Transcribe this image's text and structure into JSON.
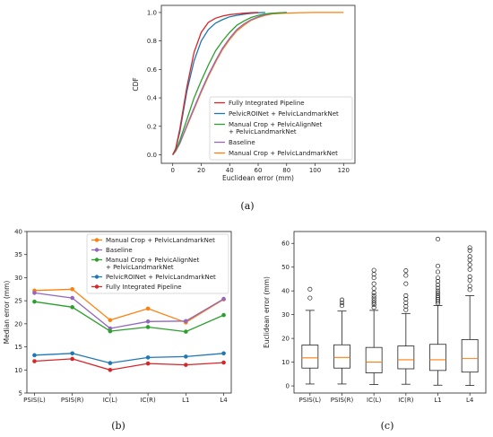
{
  "colors": {
    "fully_integrated": "#d62728",
    "pelvicroi": "#1f77b4",
    "manual_align": "#2ca02c",
    "baseline": "#9467bd",
    "manual_landmark": "#ff7f0e",
    "median_line": "#ff7f0e"
  },
  "chart_data": [
    {
      "type": "line",
      "panel_label": "(a)",
      "xlabel": "Euclidean error (mm)",
      "ylabel": "CDF",
      "xlim": [
        -8,
        128
      ],
      "ylim": [
        -0.06,
        1.05
      ],
      "xticks": [
        0,
        20,
        40,
        60,
        80,
        100,
        120
      ],
      "yticks": [
        0.0,
        0.2,
        0.4,
        0.6,
        0.8,
        1.0
      ],
      "legend_position": "lower-right",
      "series": [
        {
          "name": "Fully Integrated Pipeline",
          "color": "#d62728",
          "x": [
            0,
            2,
            5,
            10,
            15,
            20,
            25,
            30,
            35,
            40,
            45,
            50,
            55,
            60
          ],
          "y": [
            0.0,
            0.04,
            0.18,
            0.48,
            0.72,
            0.86,
            0.93,
            0.96,
            0.975,
            0.985,
            0.99,
            0.995,
            0.998,
            1.0
          ]
        },
        {
          "name": "PelvicROINet + PelvicLandmarkNet",
          "color": "#1f77b4",
          "x": [
            0,
            2,
            5,
            10,
            15,
            20,
            25,
            30,
            35,
            40,
            45,
            50,
            55,
            60,
            65
          ],
          "y": [
            0.0,
            0.04,
            0.16,
            0.45,
            0.66,
            0.8,
            0.88,
            0.925,
            0.95,
            0.97,
            0.98,
            0.988,
            0.994,
            0.998,
            1.0
          ]
        },
        {
          "name": "Manual Crop + PelvicAlignNet + PelvicLandmarkNet",
          "color": "#2ca02c",
          "x": [
            0,
            2,
            5,
            10,
            15,
            20,
            25,
            30,
            35,
            40,
            45,
            50,
            55,
            60,
            65,
            70,
            80
          ],
          "y": [
            0.0,
            0.03,
            0.1,
            0.25,
            0.4,
            0.52,
            0.63,
            0.73,
            0.8,
            0.86,
            0.91,
            0.94,
            0.965,
            0.98,
            0.99,
            0.995,
            1.0
          ]
        },
        {
          "name": "Baseline",
          "color": "#9467bd",
          "x": [
            0,
            2,
            5,
            10,
            15,
            20,
            25,
            30,
            35,
            40,
            45,
            50,
            55,
            60,
            65,
            70,
            75,
            80
          ],
          "y": [
            0.0,
            0.025,
            0.08,
            0.21,
            0.33,
            0.45,
            0.56,
            0.66,
            0.75,
            0.82,
            0.88,
            0.92,
            0.95,
            0.97,
            0.985,
            0.993,
            0.997,
            1.0
          ]
        },
        {
          "name": "Manual Crop + PelvicLandmarkNet",
          "color": "#ff7f0e",
          "x": [
            0,
            2,
            5,
            10,
            15,
            20,
            25,
            30,
            35,
            40,
            45,
            50,
            55,
            60,
            65,
            70,
            80,
            90,
            100,
            120
          ],
          "y": [
            0.0,
            0.025,
            0.08,
            0.2,
            0.32,
            0.44,
            0.55,
            0.65,
            0.74,
            0.81,
            0.87,
            0.91,
            0.945,
            0.965,
            0.98,
            0.99,
            0.996,
            0.999,
            1.0,
            1.0
          ]
        }
      ]
    },
    {
      "type": "line",
      "panel_label": "(b)",
      "xlabel": "",
      "ylabel": "Median error (mm)",
      "categories": [
        "PSIS(L)",
        "PSIS(R)",
        "IC(L)",
        "IC(R)",
        "L1",
        "L4"
      ],
      "ylim": [
        5,
        40
      ],
      "yticks": [
        5,
        10,
        15,
        20,
        25,
        30,
        35,
        40
      ],
      "legend_position": "upper-center",
      "series": [
        {
          "name": "Manual Crop + PelvicLandmarkNet",
          "color": "#ff7f0e",
          "values": [
            27.2,
            27.5,
            20.8,
            23.3,
            20.3,
            25.3
          ]
        },
        {
          "name": "Baseline",
          "color": "#9467bd",
          "values": [
            26.7,
            25.6,
            19.0,
            20.5,
            20.6,
            25.4
          ]
        },
        {
          "name": "Manual Crop + PelvicAlignNet + PelvicLandmarkNet",
          "color": "#2ca02c",
          "values": [
            24.8,
            23.6,
            18.4,
            19.3,
            18.3,
            21.9
          ]
        },
        {
          "name": "PelvicROINet + PelvicLandmarkNet",
          "color": "#1f77b4",
          "values": [
            13.2,
            13.6,
            11.5,
            12.7,
            12.9,
            13.6
          ]
        },
        {
          "name": "Fully Integrated Pipeline",
          "color": "#d62728",
          "values": [
            11.9,
            12.4,
            10.0,
            11.4,
            11.1,
            11.6
          ]
        }
      ]
    },
    {
      "type": "box",
      "panel_label": "(c)",
      "xlabel": "",
      "ylabel": "Euclidean error (mm)",
      "categories": [
        "PSIS(L)",
        "PSIS(R)",
        "IC(L)",
        "IC(R)",
        "L1",
        "L4"
      ],
      "ylim": [
        -3,
        65
      ],
      "yticks": [
        0,
        10,
        20,
        30,
        40,
        50,
        60
      ],
      "boxes": [
        {
          "whislo": 0.8,
          "q1": 7.5,
          "med": 11.8,
          "q3": 17.2,
          "whishi": 31.8,
          "fliers": [
            37.0,
            40.7
          ]
        },
        {
          "whislo": 0.8,
          "q1": 7.5,
          "med": 12.0,
          "q3": 17.3,
          "whishi": 31.5,
          "fliers": [
            33.8,
            35.0,
            36.2
          ]
        },
        {
          "whislo": 0.6,
          "q1": 5.5,
          "med": 10.0,
          "q3": 16.2,
          "whishi": 31.8,
          "fliers": [
            33.0,
            34.2,
            35.1,
            36.0,
            37.0,
            38.0,
            39.2,
            41.0,
            43.0,
            45.5,
            47.0,
            48.7
          ]
        },
        {
          "whislo": 0.7,
          "q1": 7.2,
          "med": 11.0,
          "q3": 16.8,
          "whishi": 30.5,
          "fliers": [
            32.0,
            33.5,
            35.0,
            36.5,
            38.0,
            43.0,
            46.5,
            48.5
          ]
        },
        {
          "whislo": 0.3,
          "q1": 6.5,
          "med": 11.0,
          "q3": 17.5,
          "whishi": 33.8,
          "fliers": [
            34.8,
            35.6,
            36.4,
            37.2,
            38.0,
            39.0,
            40.0,
            41.2,
            42.5,
            44.0,
            45.5,
            48.0,
            50.5,
            61.8
          ]
        },
        {
          "whislo": 0.2,
          "q1": 5.8,
          "med": 11.5,
          "q3": 19.5,
          "whishi": 38.0,
          "fliers": [
            40.5,
            42.0,
            44.5,
            46.0,
            49.0,
            51.0,
            53.0,
            54.5,
            57.0,
            58.2
          ]
        }
      ]
    }
  ]
}
